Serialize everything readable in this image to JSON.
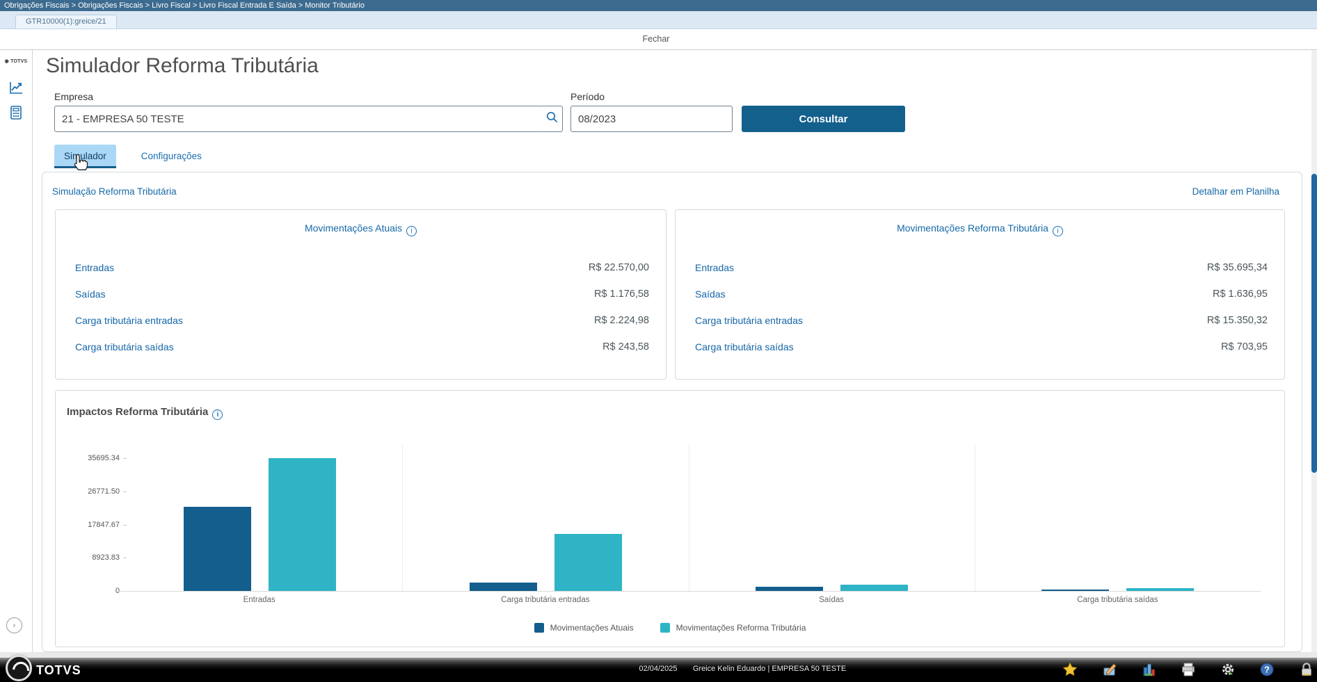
{
  "breadcrumb": "Obrigações Fiscais > Obrigações Fiscais > Livro Fiscal > Livro Fiscal Entrada E Saída > Monitor Tributário",
  "window_tab": "GTR10000(1):greice/21",
  "menu": {
    "fechar": "Fechar"
  },
  "sidebar": {
    "logo": "TOTVS",
    "icons": [
      "line-chart",
      "calculator"
    ],
    "expand": "›"
  },
  "page": {
    "title": "Simulador Reforma Tributária"
  },
  "form": {
    "empresa_label": "Empresa",
    "empresa_value": "21 - EMPRESA 50 TESTE",
    "periodo_label": "Período",
    "periodo_value": "08/2023",
    "consultar_label": "Consultar"
  },
  "tabs": [
    {
      "label": "Simulador",
      "active": true
    },
    {
      "label": "Configurações",
      "active": false
    }
  ],
  "simulation": {
    "section_title": "Simulação Reforma Tributária",
    "detail_link": "Detalhar em Planilha",
    "cards": [
      {
        "title": "Movimentações Atuais",
        "rows": [
          {
            "label": "Entradas",
            "value": "R$ 22.570,00"
          },
          {
            "label": "Saídas",
            "value": "R$ 1.176,58"
          },
          {
            "label": "Carga tributária entradas",
            "value": "R$ 2.224,98"
          },
          {
            "label": "Carga tributária saídas",
            "value": "R$ 243,58"
          }
        ]
      },
      {
        "title": "Movimentações Reforma Tributária",
        "rows": [
          {
            "label": "Entradas",
            "value": "R$ 35.695,34"
          },
          {
            "label": "Saídas",
            "value": "R$ 1.636,95"
          },
          {
            "label": "Carga tributária entradas",
            "value": "R$ 15.350,32"
          },
          {
            "label": "Carga tributária saídas",
            "value": "R$ 703,95"
          }
        ]
      }
    ]
  },
  "chart_data": {
    "type": "bar",
    "title": "Impactos Reforma Tributária",
    "categories": [
      "Entradas",
      "Carga tributária entradas",
      "Saídas",
      "Carga tributária saídas"
    ],
    "series": [
      {
        "name": "Movimentações Atuais",
        "color": "#135e8c",
        "values": [
          22570.0,
          2224.98,
          1176.58,
          243.58
        ]
      },
      {
        "name": "Movimentações Reforma Tributária",
        "color": "#2eb4c5",
        "values": [
          35695.34,
          15350.32,
          1636.95,
          703.95
        ]
      }
    ],
    "y_ticks": [
      35695.34,
      26771.5,
      17847.67,
      8923.83,
      0
    ],
    "y_tick_labels": [
      "35695.34",
      "26771.50",
      "17847.67",
      "8923.83",
      "0"
    ],
    "ylim": [
      0,
      35695.34
    ],
    "xlabel": "",
    "ylabel": "",
    "grid": "vertical-group-separators",
    "legend_position": "bottom"
  },
  "statusbar": {
    "brand": "TOTVS",
    "date": "02/04/2025",
    "user": "Greice Kelin Eduardo | EMPRESA 50 TESTE",
    "icons": [
      "star",
      "pencil",
      "building-chart",
      "printer",
      "gear",
      "help",
      "lock"
    ]
  },
  "colors": {
    "breadcrumb_bg": "#3d6b8f",
    "brand_blue": "#1669a7",
    "button_blue": "#14608d",
    "tab_active_bg": "#abd7f6",
    "bar_atual": "#135e8c",
    "bar_reforma": "#2eb4c5"
  }
}
